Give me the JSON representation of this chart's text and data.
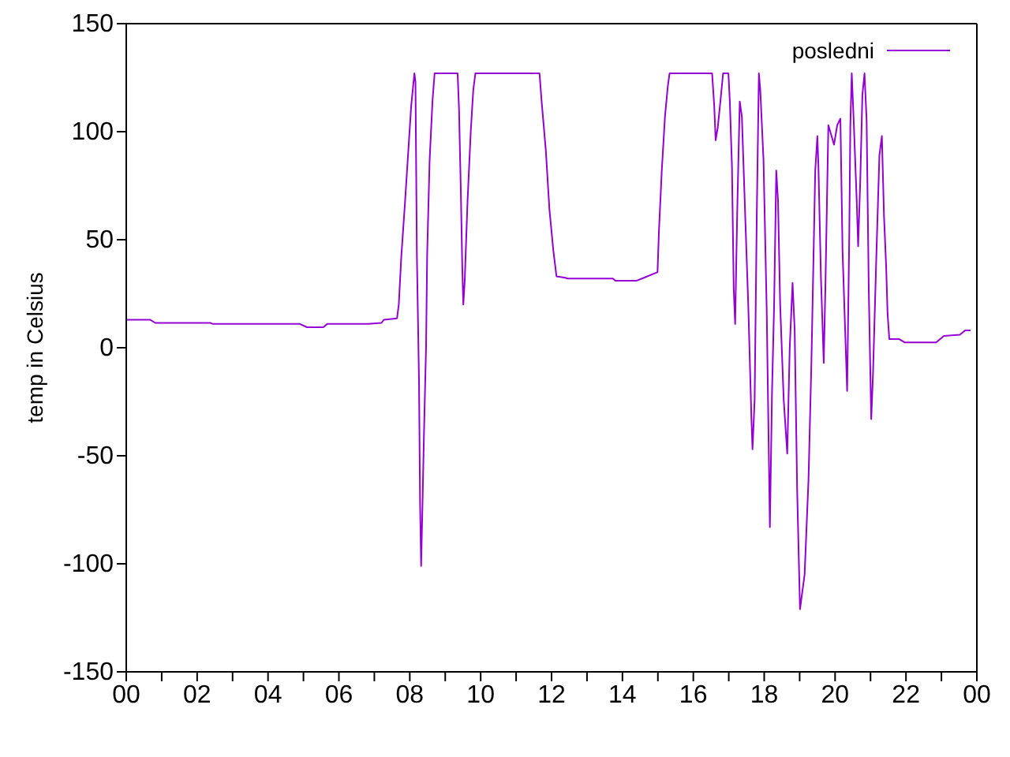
{
  "chart_data": {
    "type": "line",
    "ylabel": "temp in Celsius",
    "xlim": [
      0,
      24
    ],
    "xticks": [
      {
        "value": 0,
        "label": "00"
      },
      {
        "value": 1,
        "label": null
      },
      {
        "value": 2,
        "label": "02"
      },
      {
        "value": 3,
        "label": null
      },
      {
        "value": 4,
        "label": "04"
      },
      {
        "value": 5,
        "label": null
      },
      {
        "value": 6,
        "label": "06"
      },
      {
        "value": 7,
        "label": null
      },
      {
        "value": 8,
        "label": "08"
      },
      {
        "value": 9,
        "label": null
      },
      {
        "value": 10,
        "label": "10"
      },
      {
        "value": 11,
        "label": null
      },
      {
        "value": 12,
        "label": "12"
      },
      {
        "value": 13,
        "label": null
      },
      {
        "value": 14,
        "label": "14"
      },
      {
        "value": 15,
        "label": null
      },
      {
        "value": 16,
        "label": "16"
      },
      {
        "value": 17,
        "label": null
      },
      {
        "value": 18,
        "label": "18"
      },
      {
        "value": 19,
        "label": null
      },
      {
        "value": 20,
        "label": "20"
      },
      {
        "value": 21,
        "label": null
      },
      {
        "value": 22,
        "label": "22"
      },
      {
        "value": 23,
        "label": null
      },
      {
        "value": 24,
        "label": "00"
      }
    ],
    "ylim": [
      -150,
      150
    ],
    "yticks": [
      -150,
      -100,
      -50,
      0,
      50,
      100,
      150
    ],
    "legend": "top right",
    "marker": "none",
    "line_style": "solid",
    "series": [
      {
        "name": "posledni",
        "color": "#9400d3",
        "x": [
          0,
          0.67,
          0.82,
          2.37,
          2.45,
          4.9,
          5.1,
          5.56,
          5.67,
          6.82,
          7.2,
          7.27,
          7.64,
          7.69,
          7.76,
          7.86,
          7.95,
          8.04,
          8.13,
          8.16,
          8.2,
          8.26,
          8.29,
          8.32,
          8.35,
          8.4,
          8.46,
          8.49,
          8.56,
          8.64,
          8.7,
          9.35,
          9.39,
          9.44,
          9.48,
          9.51,
          9.55,
          9.63,
          9.72,
          9.79,
          9.85,
          11.66,
          11.72,
          11.84,
          11.94,
          12.05,
          12.14,
          12.36,
          12.46,
          13.73,
          13.8,
          14.39,
          14.62,
          14.99,
          15.03,
          15.11,
          15.2,
          15.28,
          15.33,
          16.53,
          16.59,
          16.63,
          16.69,
          16.77,
          16.84,
          16.99,
          17.03,
          17.09,
          17.14,
          17.18,
          17.24,
          17.31,
          17.37,
          17.45,
          17.55,
          17.64,
          17.67,
          17.73,
          17.79,
          17.85,
          17.89,
          17.98,
          18.07,
          18.16,
          18.22,
          18.28,
          18.34,
          18.39,
          18.45,
          18.55,
          18.65,
          18.72,
          18.8,
          18.86,
          18.93,
          19.01,
          19.14,
          19.25,
          19.33,
          19.44,
          19.5,
          19.53,
          19.6,
          19.68,
          19.73,
          19.81,
          19.9,
          19.97,
          20.06,
          20.15,
          20.21,
          20.3,
          20.34,
          20.4,
          20.43,
          20.47,
          20.53,
          20.61,
          20.65,
          20.71,
          20.77,
          20.83,
          20.89,
          20.95,
          21.02,
          21.07,
          21.16,
          21.25,
          21.32,
          21.38,
          21.44,
          21.48,
          21.53,
          21.81,
          21.96,
          22.85,
          23.07,
          23.52,
          23.67,
          23.82
        ],
        "values": [
          13,
          13,
          11.5,
          11.5,
          11,
          11,
          9.5,
          9.5,
          11,
          11,
          11.5,
          13,
          13.6,
          20,
          42,
          66,
          89,
          112,
          127,
          123,
          43,
          -15,
          -72,
          -101,
          -79,
          -40,
          1,
          43,
          87,
          114,
          127,
          127,
          110,
          73,
          38,
          20,
          31,
          68,
          100,
          119,
          127,
          127,
          114,
          91,
          64,
          45,
          33,
          32.5,
          32,
          32,
          31,
          31,
          32.5,
          35,
          54,
          82,
          107,
          121,
          127,
          127,
          112,
          96,
          102,
          115,
          127,
          127,
          114,
          84,
          27,
          11,
          64,
          114,
          107,
          68,
          20,
          -33,
          -47,
          -24,
          61,
          127,
          119,
          87,
          18,
          -83,
          -21,
          20,
          82,
          68,
          20,
          -24,
          -49,
          0,
          30,
          8,
          -66,
          -121,
          -105,
          -61,
          -8,
          82,
          98,
          84,
          33,
          -7,
          31,
          103,
          98,
          94,
          103,
          106,
          45,
          0,
          -20,
          52,
          103,
          127,
          103,
          68,
          47,
          77,
          117,
          127,
          105,
          27,
          -33,
          -12,
          40,
          89,
          98,
          61,
          38,
          16,
          4,
          4,
          2.5,
          2.5,
          5.5,
          6,
          8,
          8
        ]
      }
    ]
  }
}
